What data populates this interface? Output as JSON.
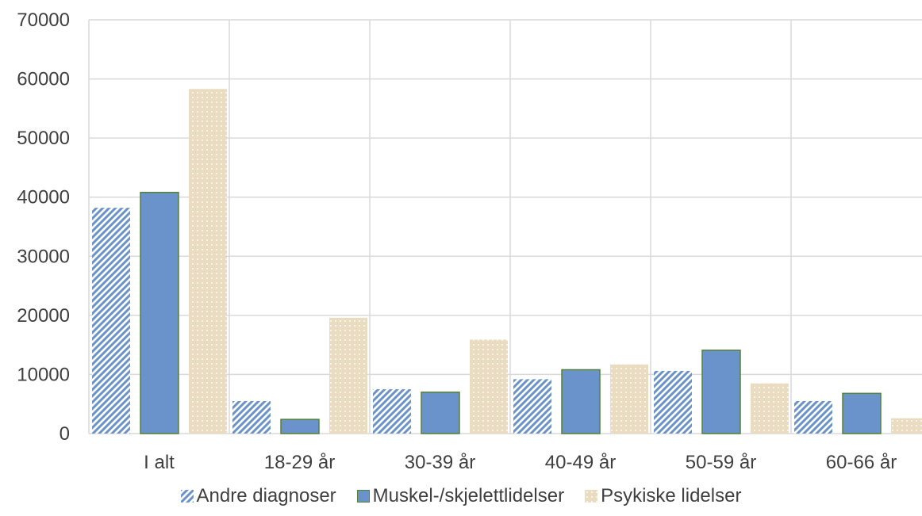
{
  "chart_data": {
    "type": "bar",
    "categories": [
      "I alt",
      "18-29 år",
      "30-39 år",
      "40-49 år",
      "50-59 år",
      "60-66 år"
    ],
    "series": [
      {
        "name": "Andre diagnoser",
        "values": [
          38200,
          5500,
          7500,
          9200,
          10600,
          5500
        ],
        "color": "#6a93cc",
        "pattern": "diagonal-stripes"
      },
      {
        "name": "Muskel-/skjelettlidelser",
        "values": [
          40800,
          2400,
          7000,
          10800,
          14100,
          6800
        ],
        "color": "#6a93cc",
        "pattern": "solid"
      },
      {
        "name": "Psykiske lidelser",
        "values": [
          58300,
          19600,
          15900,
          11700,
          8500,
          2600
        ],
        "color": "#e9dcc0",
        "pattern": "dots"
      }
    ],
    "yticks": [
      "0",
      "10000",
      "20000",
      "30000",
      "40000",
      "50000",
      "60000",
      "70000"
    ],
    "ylim": [
      0,
      70000
    ],
    "grid": true,
    "legend_position": "bottom"
  }
}
